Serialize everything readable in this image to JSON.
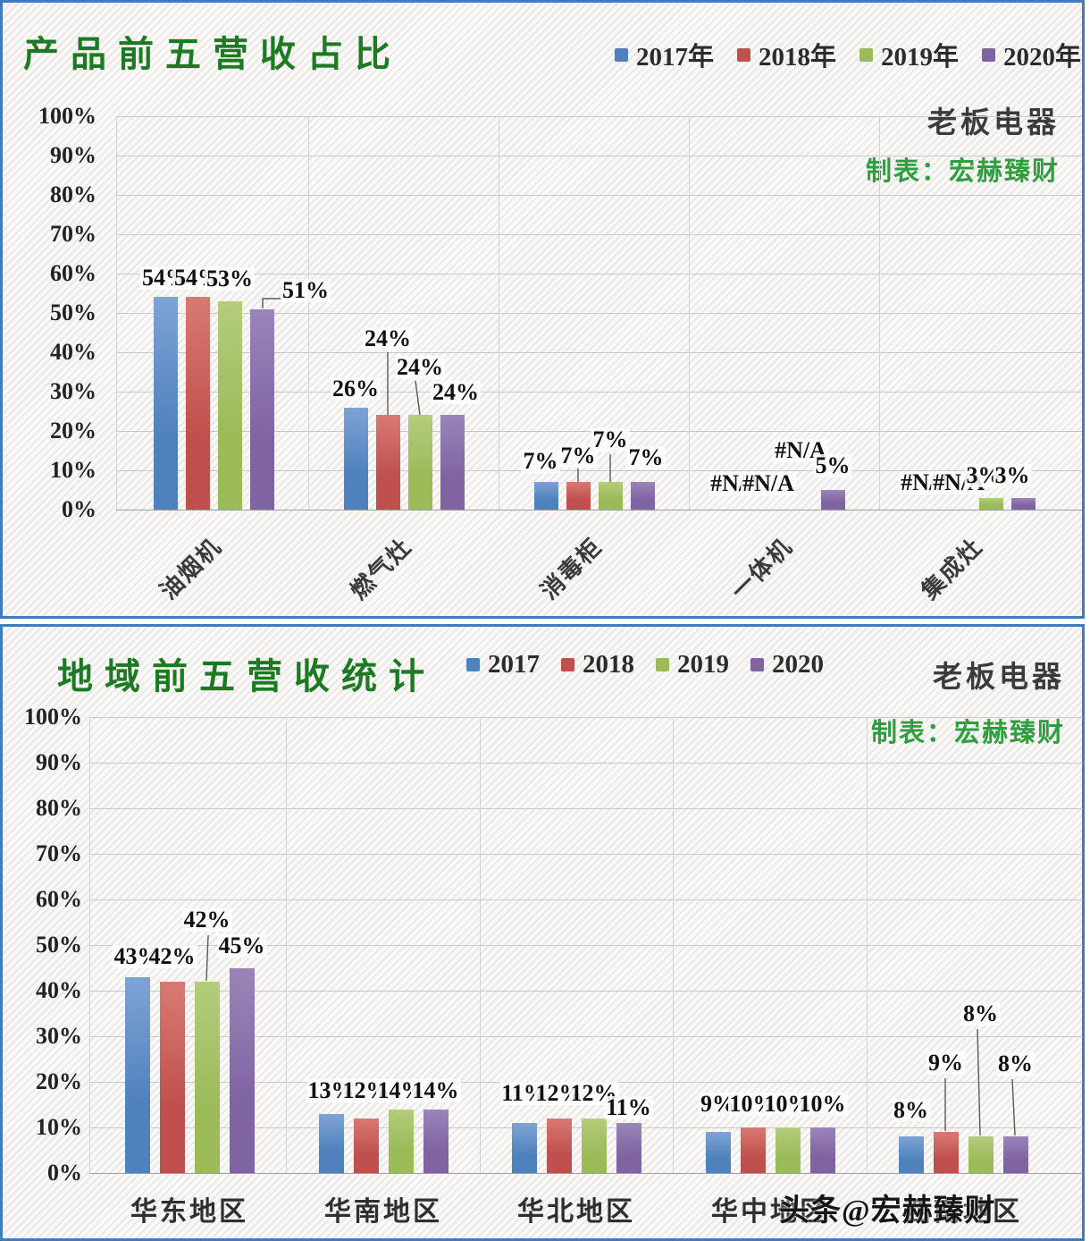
{
  "watermark": "头条@宏赫臻财",
  "colors": {
    "series": [
      "#4f81bd",
      "#c0504d",
      "#9bbb59",
      "#8064a2"
    ],
    "series_light": [
      "#7da3d6",
      "#d87a72",
      "#b4cc7c",
      "#9a84b9"
    ],
    "title_green": "#1b7a22",
    "credit_green": "#2e9e3f",
    "panel_border": "#3e7bbf",
    "grid_line": "#c9c9c9",
    "text_dark": "#2f2f2f"
  },
  "chart_data": [
    {
      "type": "bar",
      "title": "产品前五营收占比",
      "company": "老板电器",
      "credit": "制表：宏赫臻财",
      "legend": [
        "2017年",
        "2018年",
        "2019年",
        "2020年"
      ],
      "legend_position": "top-right",
      "grid": true,
      "ylim": [
        0,
        100
      ],
      "yticks": [
        "100%",
        "90%",
        "80%",
        "70%",
        "60%",
        "50%",
        "40%",
        "30%",
        "20%",
        "10%",
        "0%"
      ],
      "categories": [
        "油烟机",
        "燃气灶",
        "消毒柜",
        "一体机",
        "集成灶"
      ],
      "series": [
        {
          "name": "2017年",
          "values": [
            54,
            26,
            7,
            null,
            null
          ],
          "labels": [
            "54%",
            "26%",
            "7%",
            "#N/A",
            "#N/A"
          ]
        },
        {
          "name": "2018年",
          "values": [
            54,
            24,
            7,
            null,
            null
          ],
          "labels": [
            "54%",
            "24%",
            "7%",
            "#N/A",
            "#N/A"
          ]
        },
        {
          "name": "2019年",
          "values": [
            53,
            24,
            7,
            null,
            3
          ],
          "labels": [
            "53%",
            "24%",
            "7%",
            "#N/A",
            "3%"
          ]
        },
        {
          "name": "2020年",
          "values": [
            51,
            24,
            7,
            5,
            3
          ],
          "labels": [
            "51%",
            "24%",
            "7%",
            "5%",
            "3%"
          ]
        }
      ]
    },
    {
      "type": "bar",
      "title": "地域前五营收统计",
      "company": "老板电器",
      "credit": "制表：宏赫臻财",
      "legend": [
        "2017",
        "2018",
        "2019",
        "2020"
      ],
      "legend_position": "top-center",
      "grid": true,
      "ylim": [
        0,
        100
      ],
      "yticks": [
        "100%",
        "90%",
        "80%",
        "70%",
        "60%",
        "50%",
        "40%",
        "30%",
        "20%",
        "10%",
        "0%"
      ],
      "categories": [
        "华东地区",
        "华南地区",
        "华北地区",
        "华中地区",
        "西南地区"
      ],
      "series": [
        {
          "name": "2017",
          "values": [
            43,
            13,
            11,
            9,
            8
          ],
          "labels": [
            "43%",
            "13%",
            "11%",
            "9%",
            "8%"
          ]
        },
        {
          "name": "2018",
          "values": [
            42,
            12,
            12,
            10,
            9
          ],
          "labels": [
            "42%",
            "12%",
            "12%",
            "10%",
            "9%"
          ]
        },
        {
          "name": "2019",
          "values": [
            42,
            14,
            12,
            10,
            8
          ],
          "labels": [
            "42%",
            "14%",
            "12%",
            "10%",
            "8%"
          ]
        },
        {
          "name": "2020",
          "values": [
            45,
            14,
            11,
            10,
            8
          ],
          "labels": [
            "45%",
            "14%",
            "11%",
            "10%",
            "8%"
          ]
        }
      ]
    }
  ]
}
